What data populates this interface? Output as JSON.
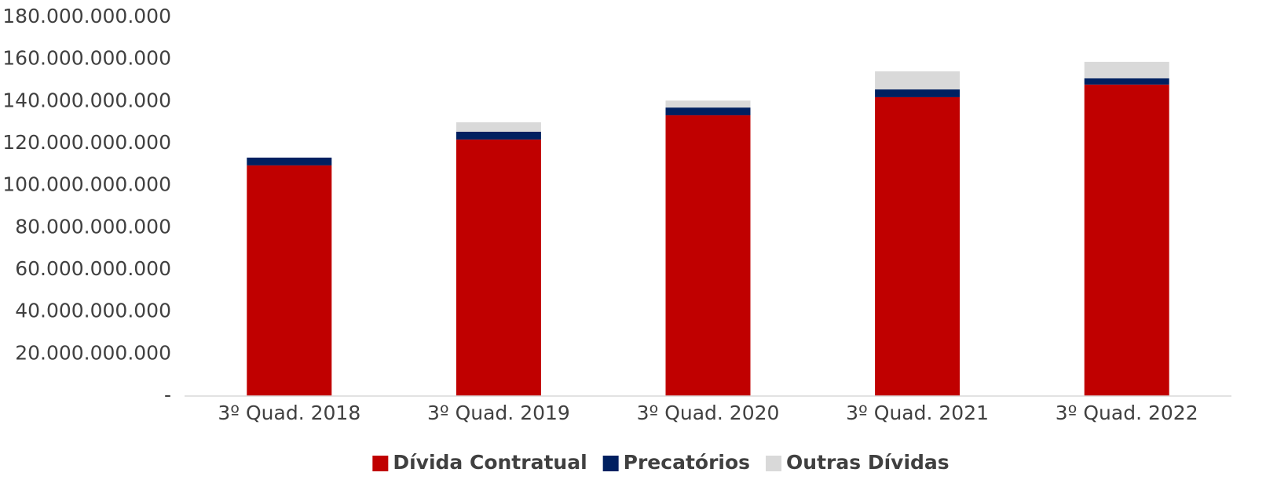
{
  "chart_data": {
    "type": "stacked_bar",
    "categories": [
      "3º Quad. 2018",
      "3º Quad. 2019",
      "3º Quad. 2020",
      "3º Quad. 2021",
      "3º Quad. 2022"
    ],
    "series": [
      {
        "name": "Dívida Contratual",
        "color": "#c00000",
        "values": [
          109600000000,
          121900000000,
          133400000000,
          142000000000,
          148000000000
        ]
      },
      {
        "name": "Precatórios",
        "color": "#002060",
        "values": [
          3700000000,
          3700000000,
          3700000000,
          3700000000,
          3000000000
        ]
      },
      {
        "name": "Outras Dívidas",
        "color": "#d9d9d9",
        "values": [
          0,
          4500000000,
          3300000000,
          8600000000,
          7800000000
        ]
      }
    ],
    "ylim": [
      0,
      180000000000
    ],
    "yticks": [
      {
        "value": 0,
        "label": "-"
      },
      {
        "value": 20000000000,
        "label": "20.000.000.000"
      },
      {
        "value": 40000000000,
        "label": "40.000.000.000"
      },
      {
        "value": 60000000000,
        "label": "60.000.000.000"
      },
      {
        "value": 80000000000,
        "label": "80.000.000.000"
      },
      {
        "value": 100000000000,
        "label": "100.000.000.000"
      },
      {
        "value": 120000000000,
        "label": "120.000.000.000"
      },
      {
        "value": 140000000000,
        "label": "140.000.000.000"
      },
      {
        "value": 160000000000,
        "label": "160.000.000.000"
      },
      {
        "value": 180000000000,
        "label": "180.000.000.000"
      }
    ],
    "grid": false,
    "legend": "bottom"
  }
}
